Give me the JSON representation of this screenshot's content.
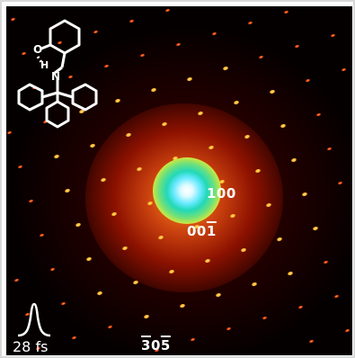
{
  "labels": {
    "reflection_100": "100",
    "reflection_001_prefix": "00",
    "reflection_001_bar": "1",
    "reflection_305_bar_a": "3",
    "reflection_305_mid": "0",
    "reflection_305_bar_b": "5"
  },
  "pulse": {
    "duration": "28 fs"
  },
  "molecule": {
    "atoms": [
      "O",
      "H",
      "N"
    ]
  },
  "colors": {
    "background": "#040000",
    "spot": "#ffb020",
    "core": "#66e9ff",
    "label": "#ffffff"
  }
}
